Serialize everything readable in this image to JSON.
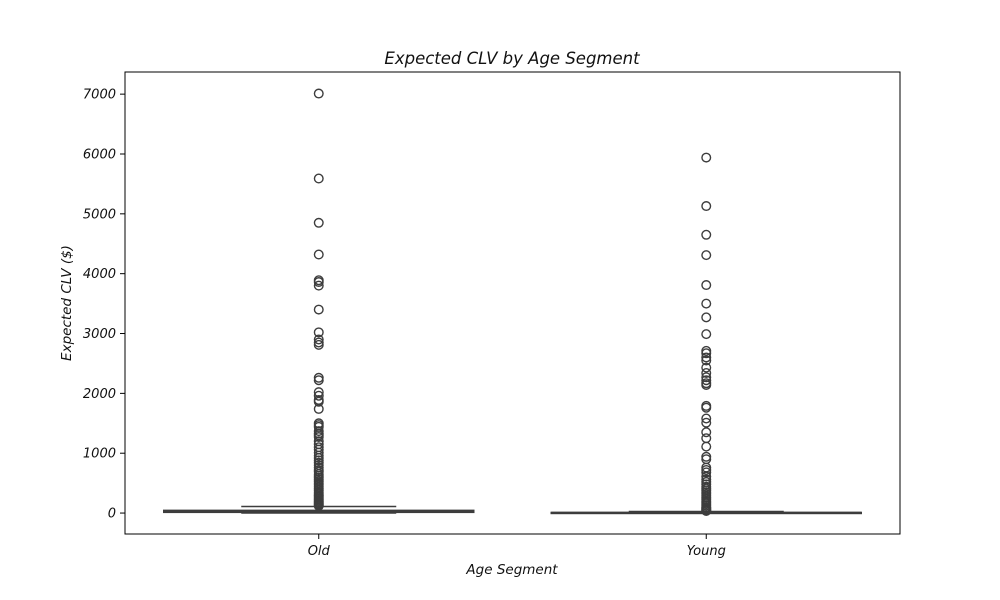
{
  "chart_data": {
    "type": "box",
    "title": "Expected CLV by Age Segment",
    "xlabel": "Age Segment",
    "ylabel": "Expected CLV ($)",
    "categories": [
      "Old",
      "Young"
    ],
    "ylim": [
      -350,
      7370
    ],
    "yticks": [
      0,
      1000,
      2000,
      3000,
      4000,
      5000,
      6000,
      7000
    ],
    "grid": false,
    "legend": "none",
    "boxes": [
      {
        "category": "Old",
        "whisker_low": 0,
        "q1": 12,
        "median": 30,
        "q3": 45,
        "whisker_high": 110,
        "outliers": [
          7010,
          5590,
          4850,
          4320,
          3890,
          3860,
          3800,
          3400,
          3020,
          2900,
          2850,
          2810,
          2260,
          2220,
          2020,
          1960,
          1890,
          1860,
          1740,
          1500,
          1470,
          1440,
          1370,
          1330,
          1300,
          1270,
          1200,
          1150,
          1100,
          1060,
          1010,
          960,
          920,
          880,
          840,
          800,
          760,
          720,
          690,
          650,
          620,
          590,
          560,
          530,
          500,
          470,
          440,
          410,
          380,
          350,
          320,
          300,
          280,
          260,
          240,
          220,
          200,
          180,
          165,
          150,
          135,
          120
        ]
      },
      {
        "category": "Young",
        "whisker_low": 0,
        "q1": 2,
        "median": 5,
        "q3": 10,
        "whisker_high": 25,
        "outliers": [
          5940,
          5130,
          4650,
          4310,
          3810,
          3500,
          3270,
          2990,
          2710,
          2670,
          2600,
          2550,
          2430,
          2340,
          2270,
          2220,
          2170,
          2140,
          1790,
          1760,
          1580,
          1510,
          1350,
          1250,
          1110,
          940,
          900,
          760,
          720,
          680,
          610,
          560,
          520,
          480,
          440,
          410,
          380,
          350,
          320,
          290,
          260,
          230,
          200,
          175,
          150,
          125,
          100,
          80,
          60,
          45,
          35
        ]
      }
    ],
    "colors": {
      "box_fill": "#3a75c4",
      "line": "#3d3d3d",
      "outlier_edge": "#3d3d3d",
      "axes_edge": "#000000",
      "text": "#111111"
    }
  }
}
